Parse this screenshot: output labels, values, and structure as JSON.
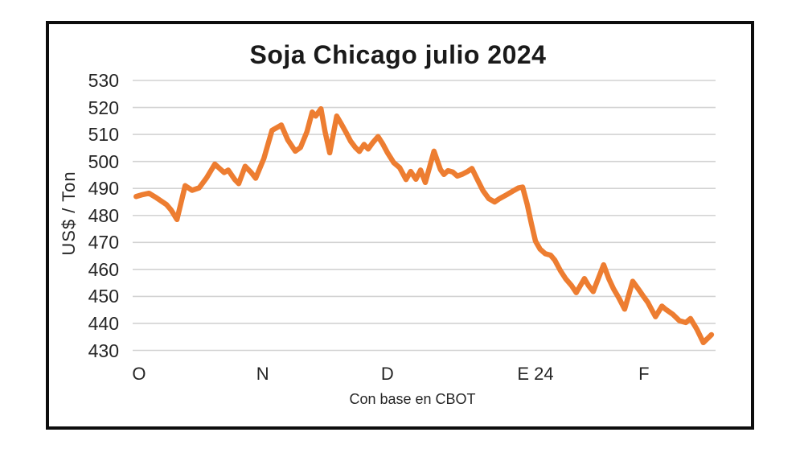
{
  "chart": {
    "title": "Soja Chicago julio 2024",
    "y_axis_title": "US$ / Ton",
    "caption": "Con base en CBOT",
    "colors": {
      "line": "#ED7D31",
      "grid": "#D2D2D2",
      "text": "#262626",
      "frame_border": "#0D0D0D",
      "background": "#FFFFFF"
    }
  },
  "chart_data": {
    "type": "line",
    "title": "Soja Chicago julio 2024",
    "xlabel": "Con base en CBOT",
    "ylabel": "US$ / Ton",
    "ylim": [
      430,
      530
    ],
    "grid": true,
    "legend": false,
    "y_ticks": [
      530,
      520,
      510,
      500,
      490,
      480,
      470,
      460,
      450,
      440,
      430
    ],
    "x_ticks": [
      {
        "label": "O",
        "pos": 0.011
      },
      {
        "label": "N",
        "pos": 0.223
      },
      {
        "label": "D",
        "pos": 0.437
      },
      {
        "label": "E 24",
        "pos": 0.691
      },
      {
        "label": "F",
        "pos": 0.877
      }
    ],
    "series": [
      {
        "name": "Soja Chicago julio 2024 (US$/Ton)",
        "points": [
          [
            0.006,
            487.0
          ],
          [
            0.017,
            487.7
          ],
          [
            0.028,
            488.2
          ],
          [
            0.041,
            486.5
          ],
          [
            0.058,
            484.0
          ],
          [
            0.066,
            482.0
          ],
          [
            0.076,
            478.5
          ],
          [
            0.09,
            491.0
          ],
          [
            0.102,
            489.3
          ],
          [
            0.114,
            490.2
          ],
          [
            0.127,
            494.0
          ],
          [
            0.141,
            499.0
          ],
          [
            0.15,
            497.2
          ],
          [
            0.157,
            495.9
          ],
          [
            0.164,
            496.8
          ],
          [
            0.175,
            493.3
          ],
          [
            0.182,
            491.8
          ],
          [
            0.193,
            498.2
          ],
          [
            0.203,
            496.0
          ],
          [
            0.211,
            493.8
          ],
          [
            0.225,
            501.0
          ],
          [
            0.239,
            511.5
          ],
          [
            0.255,
            513.5
          ],
          [
            0.266,
            508.0
          ],
          [
            0.279,
            503.8
          ],
          [
            0.288,
            505.2
          ],
          [
            0.299,
            511.0
          ],
          [
            0.308,
            518.3
          ],
          [
            0.314,
            516.8
          ],
          [
            0.323,
            519.5
          ],
          [
            0.33,
            511.0
          ],
          [
            0.338,
            503.2
          ],
          [
            0.35,
            516.8
          ],
          [
            0.359,
            513.5
          ],
          [
            0.366,
            510.8
          ],
          [
            0.374,
            507.5
          ],
          [
            0.382,
            505.2
          ],
          [
            0.389,
            503.7
          ],
          [
            0.397,
            506.3
          ],
          [
            0.404,
            504.6
          ],
          [
            0.412,
            507.0
          ],
          [
            0.421,
            509.2
          ],
          [
            0.429,
            506.5
          ],
          [
            0.437,
            503.3
          ],
          [
            0.448,
            499.5
          ],
          [
            0.458,
            497.7
          ],
          [
            0.469,
            493.3
          ],
          [
            0.477,
            496.3
          ],
          [
            0.486,
            493.4
          ],
          [
            0.494,
            496.8
          ],
          [
            0.502,
            492.2
          ],
          [
            0.517,
            503.8
          ],
          [
            0.528,
            497.0
          ],
          [
            0.534,
            495.2
          ],
          [
            0.541,
            496.6
          ],
          [
            0.549,
            496.1
          ],
          [
            0.557,
            494.6
          ],
          [
            0.566,
            495.3
          ],
          [
            0.574,
            496.2
          ],
          [
            0.582,
            497.4
          ],
          [
            0.592,
            493.0
          ],
          [
            0.601,
            489.2
          ],
          [
            0.611,
            486.2
          ],
          [
            0.621,
            485.0
          ],
          [
            0.63,
            486.3
          ],
          [
            0.641,
            487.6
          ],
          [
            0.652,
            489.0
          ],
          [
            0.662,
            490.2
          ],
          [
            0.669,
            490.5
          ],
          [
            0.677,
            484.0
          ],
          [
            0.684,
            477.0
          ],
          [
            0.691,
            470.5
          ],
          [
            0.699,
            467.5
          ],
          [
            0.708,
            465.8
          ],
          [
            0.717,
            465.3
          ],
          [
            0.724,
            463.5
          ],
          [
            0.734,
            459.5
          ],
          [
            0.743,
            456.5
          ],
          [
            0.753,
            454.0
          ],
          [
            0.761,
            451.4
          ],
          [
            0.768,
            454.0
          ],
          [
            0.775,
            456.6
          ],
          [
            0.782,
            454.0
          ],
          [
            0.79,
            451.8
          ],
          [
            0.808,
            461.7
          ],
          [
            0.817,
            456.5
          ],
          [
            0.825,
            452.8
          ],
          [
            0.834,
            449.5
          ],
          [
            0.844,
            445.3
          ],
          [
            0.858,
            455.6
          ],
          [
            0.869,
            452.3
          ],
          [
            0.877,
            449.8
          ],
          [
            0.884,
            447.7
          ],
          [
            0.891,
            444.8
          ],
          [
            0.897,
            442.5
          ],
          [
            0.908,
            446.4
          ],
          [
            0.914,
            445.3
          ],
          [
            0.927,
            443.3
          ],
          [
            0.938,
            441.0
          ],
          [
            0.949,
            440.3
          ],
          [
            0.957,
            441.8
          ],
          [
            0.968,
            437.8
          ],
          [
            0.979,
            432.9
          ],
          [
            0.993,
            435.8
          ]
        ]
      }
    ]
  }
}
